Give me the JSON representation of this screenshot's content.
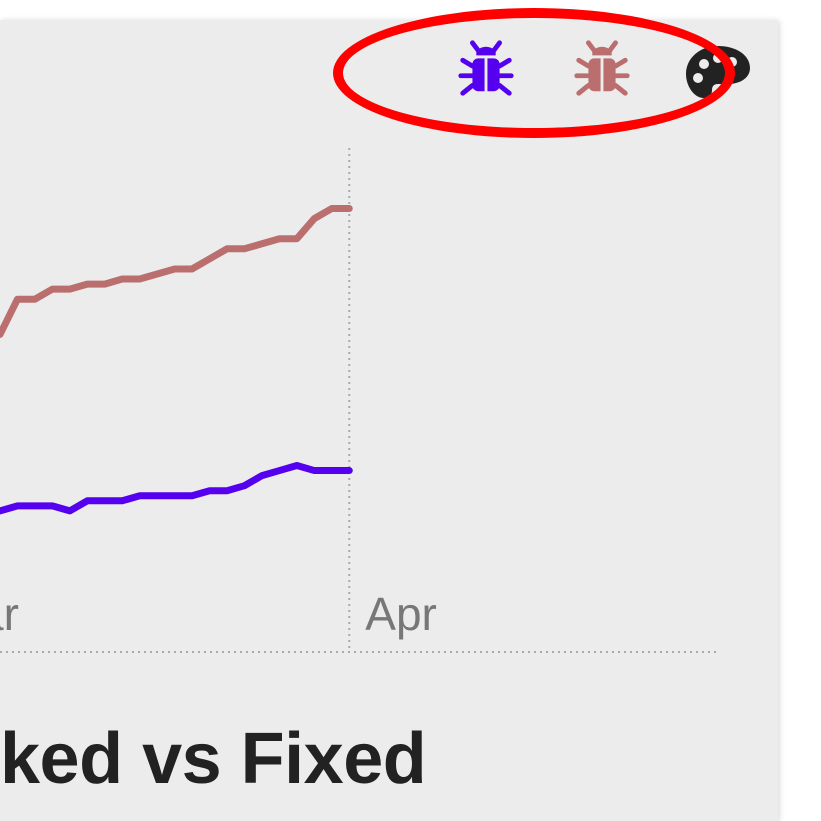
{
  "title": "ked vs Fixed",
  "toolbar": {
    "opened_icon": "bug-icon",
    "fixed_icon": "bug-icon",
    "palette_icon": "palette-icon"
  },
  "colors": {
    "opened": "#5500ee",
    "fixed": "#bb6e6e",
    "highlight": "#ff0000",
    "card": "#ececec"
  },
  "chart_data": {
    "type": "line",
    "x_tick_labels": [
      "ar",
      "Apr"
    ],
    "x_ticks": [
      0,
      20
    ],
    "xlim": [
      0,
      41
    ],
    "ylim": [
      0,
      100
    ],
    "grid": "vertical dotted at month boundary",
    "series": [
      {
        "color": "#bb6e6e",
        "x": [
          0,
          1,
          2,
          3,
          4,
          5,
          6,
          7,
          8,
          9,
          10,
          11,
          12,
          13,
          14,
          15,
          16,
          17,
          18,
          19,
          20
        ],
        "y": [
          63,
          70,
          70,
          72,
          72,
          73,
          73,
          74,
          74,
          75,
          76,
          76,
          78,
          80,
          80,
          81,
          82,
          82,
          86,
          88,
          88
        ]
      },
      {
        "color": "#5500ee",
        "x": [
          0,
          1,
          2,
          3,
          4,
          5,
          6,
          7,
          8,
          9,
          10,
          11,
          12,
          13,
          14,
          15,
          16,
          17,
          18,
          19,
          20
        ],
        "y": [
          28,
          29,
          29,
          29,
          28,
          30,
          30,
          30,
          31,
          31,
          31,
          31,
          32,
          32,
          33,
          35,
          36,
          37,
          36,
          36,
          36
        ]
      }
    ]
  }
}
